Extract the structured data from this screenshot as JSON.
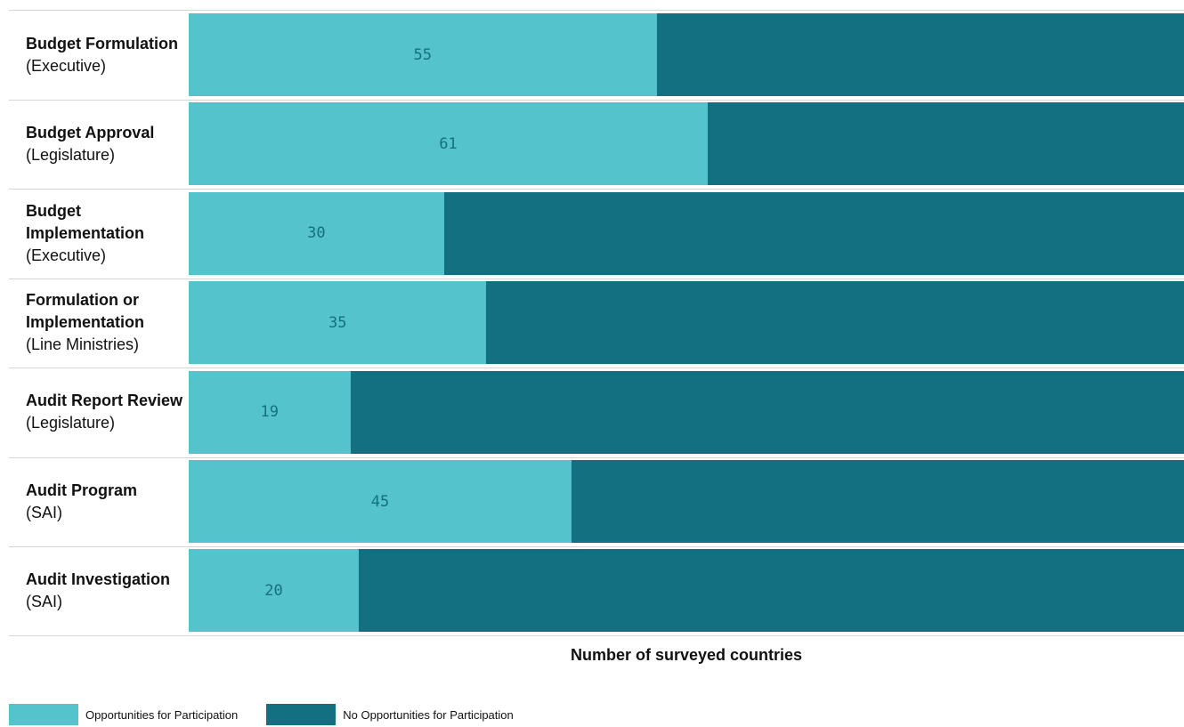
{
  "chart_data": {
    "type": "bar",
    "orientation": "horizontal",
    "stacked": true,
    "categories": [
      {
        "main": "Budget Formulation",
        "sub": "(Executive)"
      },
      {
        "main": "Budget Approval",
        "sub": "(Legislature)"
      },
      {
        "main": "Budget Implementation",
        "sub": "(Executive)"
      },
      {
        "main": "Formulation or Implementation",
        "sub": "(Line Ministries)"
      },
      {
        "main": "Audit Report Review",
        "sub": "(Legislature)"
      },
      {
        "main": "Audit Program",
        "sub": "(SAI)"
      },
      {
        "main": "Audit Investigation",
        "sub": "(SAI)"
      }
    ],
    "series": [
      {
        "name": "Opportunities for Participation",
        "color": "#55c3cb",
        "values": [
          55,
          61,
          30,
          35,
          19,
          45,
          20
        ]
      },
      {
        "name": "No Opportunities for Participation",
        "color": "#127080",
        "values": [
          62,
          56,
          87,
          82,
          98,
          72,
          97
        ]
      }
    ],
    "value_labels": [
      "55",
      "61",
      "30",
      "35",
      "19",
      "45",
      "20"
    ],
    "total": 117,
    "xlabel": "Number of surveyed countries",
    "label_color": "#147080",
    "grid": false,
    "legend_position": "bottom-left"
  }
}
